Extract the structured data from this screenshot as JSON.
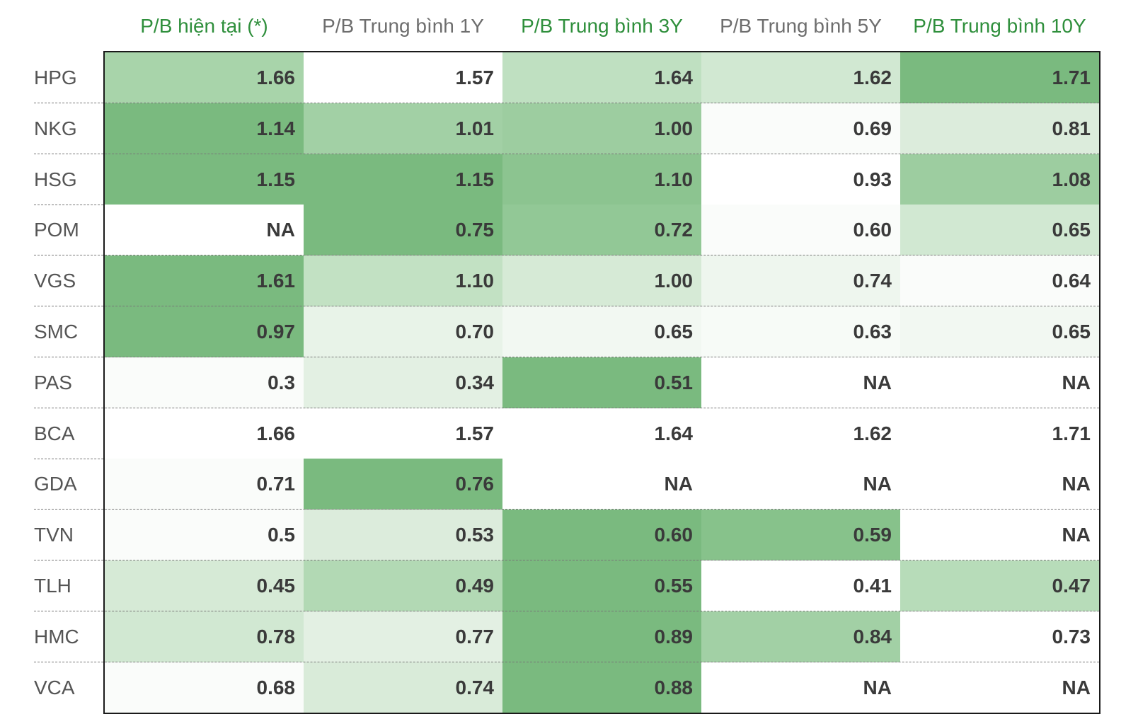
{
  "table": {
    "columns": [
      "P/B hiện tại (*)",
      "P/B Trung bình 1Y",
      "P/B Trung bình 3Y",
      "P/B Trung bình 5Y",
      "P/B Trung bình 10Y"
    ],
    "rows": [
      {
        "label": "HPG",
        "cells": [
          "1.66",
          "1.57",
          "1.64",
          "1.62",
          "1.71"
        ],
        "colors": [
          "#a8d4aa",
          "#ffffff",
          "#bfe0c1",
          "#d1e8d2",
          "#7aba7f"
        ]
      },
      {
        "label": "NKG",
        "cells": [
          "1.14",
          "1.01",
          "1.00",
          "0.69",
          "0.81"
        ],
        "colors": [
          "#7aba7f",
          "#a2d0a5",
          "#9dcda0",
          "#fafcfa",
          "#dcecdc"
        ]
      },
      {
        "label": "HSG",
        "cells": [
          "1.15",
          "1.15",
          "1.10",
          "0.93",
          "1.08"
        ],
        "colors": [
          "#7aba7f",
          "#7aba7f",
          "#8cc490",
          "#ffffff",
          "#9dcda0"
        ]
      },
      {
        "label": "POM",
        "cells": [
          "NA",
          "0.75",
          "0.72",
          "0.60",
          "0.65"
        ],
        "colors": [
          "#ffffff",
          "#7aba7f",
          "#92c896",
          "#fafcfa",
          "#d1e8d2"
        ]
      },
      {
        "label": "VGS",
        "cells": [
          "1.61",
          "1.10",
          "1.00",
          "0.74",
          "0.64"
        ],
        "colors": [
          "#7aba7f",
          "#c2e1c3",
          "#d6ead6",
          "#eef6ee",
          "#fafcfa"
        ]
      },
      {
        "label": "SMC",
        "cells": [
          "0.97",
          "0.70",
          "0.65",
          "0.63",
          "0.65"
        ],
        "colors": [
          "#7aba7f",
          "#e8f3e8",
          "#f2f8f2",
          "#f7fbf7",
          "#f2f8f2"
        ]
      },
      {
        "label": "PAS",
        "cells": [
          "0.3",
          "0.34",
          "0.51",
          "NA",
          "NA"
        ],
        "colors": [
          "#fafcfa",
          "#e3f0e3",
          "#7aba7f",
          "#ffffff",
          "#ffffff"
        ]
      },
      {
        "label": "BCA",
        "cells": [
          "1.66",
          "1.57",
          "1.64",
          "1.62",
          "1.71"
        ],
        "colors": [
          "#ffffff",
          "#ffffff",
          "#ffffff",
          "#ffffff",
          "#ffffff"
        ]
      },
      {
        "label": "GDA",
        "cells": [
          "0.71",
          "0.76",
          "NA",
          "NA",
          "NA"
        ],
        "colors": [
          "#fafcfa",
          "#7aba7f",
          "#ffffff",
          "#ffffff",
          "#ffffff"
        ]
      },
      {
        "label": "TVN",
        "cells": [
          "0.5",
          "0.53",
          "0.60",
          "0.59",
          "NA"
        ],
        "colors": [
          "#fafcfa",
          "#dcecdc",
          "#7aba7f",
          "#87c28b",
          "#ffffff"
        ]
      },
      {
        "label": "TLH",
        "cells": [
          "0.45",
          "0.49",
          "0.55",
          "0.41",
          "0.47"
        ],
        "colors": [
          "#d6ead6",
          "#b2d9b4",
          "#7aba7f",
          "#ffffff",
          "#b7dcb9"
        ]
      },
      {
        "label": "HMC",
        "cells": [
          "0.78",
          "0.77",
          "0.89",
          "0.84",
          "0.73"
        ],
        "colors": [
          "#d1e8d2",
          "#e3f0e3",
          "#7aba7f",
          "#a2d0a5",
          "#ffffff"
        ]
      },
      {
        "label": "VCA",
        "cells": [
          "0.68",
          "0.74",
          "0.88",
          "NA",
          "NA"
        ],
        "colors": [
          "#fafcfa",
          "#d9ebd9",
          "#7aba7f",
          "#ffffff",
          "#ffffff"
        ]
      }
    ]
  }
}
